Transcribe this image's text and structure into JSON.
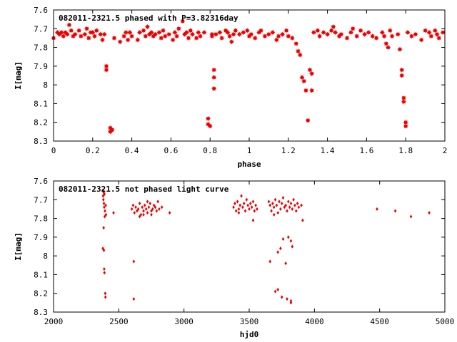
{
  "chart_data": [
    {
      "type": "scatter",
      "title": "082011-2321.5 phased with P=3.82316day",
      "xlabel": "phase",
      "ylabel": "I[mag]",
      "xlim": [
        0,
        2
      ],
      "ylim": [
        8.3,
        7.6
      ],
      "y_inverted": true,
      "x_ticks": [
        "0",
        "0.2",
        "0.4",
        "0.6",
        "0.8",
        "1",
        "1.2",
        "1.4",
        "1.6",
        "1.8",
        "2"
      ],
      "y_ticks": [
        "7.6",
        "7.7",
        "7.8",
        "7.9",
        "8",
        "8.1",
        "8.2",
        "8.3"
      ],
      "grid": false,
      "marker": "filled-star",
      "series": [
        {
          "color": "#ee0000",
          "points": [
            [
              0.0,
              7.75
            ],
            [
              0.02,
              7.72
            ],
            [
              0.03,
              7.73
            ],
            [
              0.04,
              7.72
            ],
            [
              0.05,
              7.74
            ],
            [
              0.06,
              7.72
            ],
            [
              0.07,
              7.73
            ],
            [
              0.08,
              7.68
            ],
            [
              0.09,
              7.71
            ],
            [
              0.1,
              7.74
            ],
            [
              0.11,
              7.73
            ],
            [
              0.13,
              7.71
            ],
            [
              0.14,
              7.74
            ],
            [
              0.16,
              7.73
            ],
            [
              0.17,
              7.7
            ],
            [
              0.18,
              7.75
            ],
            [
              0.19,
              7.72
            ],
            [
              0.2,
              7.72
            ],
            [
              0.21,
              7.74
            ],
            [
              0.22,
              7.71
            ],
            [
              0.24,
              7.73
            ],
            [
              0.25,
              7.76
            ],
            [
              0.26,
              7.73
            ],
            [
              0.27,
              7.9
            ],
            [
              0.27,
              7.92
            ],
            [
              0.29,
              8.23
            ],
            [
              0.29,
              8.25
            ],
            [
              0.3,
              8.24
            ],
            [
              0.31,
              7.75
            ],
            [
              0.34,
              7.77
            ],
            [
              0.36,
              7.74
            ],
            [
              0.37,
              7.72
            ],
            [
              0.38,
              7.76
            ],
            [
              0.39,
              7.72
            ],
            [
              0.4,
              7.74
            ],
            [
              0.43,
              7.76
            ],
            [
              0.44,
              7.72
            ],
            [
              0.46,
              7.71
            ],
            [
              0.47,
              7.74
            ],
            [
              0.48,
              7.69
            ],
            [
              0.49,
              7.73
            ],
            [
              0.5,
              7.72
            ],
            [
              0.51,
              7.74
            ],
            [
              0.52,
              7.73
            ],
            [
              0.54,
              7.72
            ],
            [
              0.55,
              7.75
            ],
            [
              0.56,
              7.71
            ],
            [
              0.57,
              7.74
            ],
            [
              0.59,
              7.73
            ],
            [
              0.61,
              7.76
            ],
            [
              0.62,
              7.72
            ],
            [
              0.63,
              7.74
            ],
            [
              0.64,
              7.7
            ],
            [
              0.66,
              7.66
            ],
            [
              0.67,
              7.73
            ],
            [
              0.68,
              7.72
            ],
            [
              0.69,
              7.75
            ],
            [
              0.7,
              7.71
            ],
            [
              0.71,
              7.73
            ],
            [
              0.73,
              7.75
            ],
            [
              0.74,
              7.72
            ],
            [
              0.75,
              7.74
            ],
            [
              0.77,
              7.72
            ],
            [
              0.79,
              8.18
            ],
            [
              0.79,
              8.21
            ],
            [
              0.8,
              8.22
            ],
            [
              0.81,
              7.73
            ],
            [
              0.81,
              7.74
            ],
            [
              0.82,
              7.96
            ],
            [
              0.82,
              7.92
            ],
            [
              0.82,
              8.02
            ],
            [
              0.83,
              7.73
            ],
            [
              0.85,
              7.72
            ],
            [
              0.86,
              7.75
            ],
            [
              0.88,
              7.71
            ],
            [
              0.89,
              7.72
            ],
            [
              0.9,
              7.74
            ],
            [
              0.91,
              7.77
            ],
            [
              0.92,
              7.73
            ],
            [
              0.93,
              7.71
            ],
            [
              0.95,
              7.73
            ],
            [
              0.97,
              7.72
            ],
            [
              0.99,
              7.71
            ],
            [
              1.0,
              7.74
            ],
            [
              1.01,
              7.73
            ],
            [
              1.03,
              7.75
            ],
            [
              1.05,
              7.72
            ],
            [
              1.06,
              7.71
            ],
            [
              1.08,
              7.74
            ],
            [
              1.1,
              7.73
            ],
            [
              1.12,
              7.72
            ],
            [
              1.14,
              7.76
            ],
            [
              1.15,
              7.74
            ],
            [
              1.17,
              7.73
            ],
            [
              1.19,
              7.71
            ],
            [
              1.2,
              7.74
            ],
            [
              1.22,
              7.75
            ],
            [
              1.24,
              7.78
            ],
            [
              1.25,
              7.82
            ],
            [
              1.26,
              7.84
            ],
            [
              1.27,
              7.96
            ],
            [
              1.28,
              7.98
            ],
            [
              1.29,
              8.03
            ],
            [
              1.3,
              8.19
            ],
            [
              1.31,
              7.92
            ],
            [
              1.32,
              8.03
            ],
            [
              1.32,
              7.94
            ],
            [
              1.33,
              7.72
            ],
            [
              1.35,
              7.71
            ],
            [
              1.36,
              7.74
            ],
            [
              1.38,
              7.72
            ],
            [
              1.4,
              7.73
            ],
            [
              1.42,
              7.71
            ],
            [
              1.43,
              7.69
            ],
            [
              1.44,
              7.72
            ],
            [
              1.46,
              7.74
            ],
            [
              1.47,
              7.73
            ],
            [
              1.5,
              7.75
            ],
            [
              1.52,
              7.72
            ],
            [
              1.53,
              7.7
            ],
            [
              1.55,
              7.74
            ],
            [
              1.57,
              7.71
            ],
            [
              1.59,
              7.73
            ],
            [
              1.61,
              7.72
            ],
            [
              1.63,
              7.74
            ],
            [
              1.65,
              7.75
            ],
            [
              1.68,
              7.72
            ],
            [
              1.69,
              7.74
            ],
            [
              1.7,
              7.78
            ],
            [
              1.71,
              7.8
            ],
            [
              1.72,
              7.71
            ],
            [
              1.73,
              7.74
            ],
            [
              1.76,
              7.73
            ],
            [
              1.77,
              7.81
            ],
            [
              1.78,
              7.92
            ],
            [
              1.78,
              7.95
            ],
            [
              1.79,
              8.07
            ],
            [
              1.79,
              8.09
            ],
            [
              1.8,
              8.2
            ],
            [
              1.8,
              8.22
            ],
            [
              1.81,
              7.72
            ],
            [
              1.83,
              7.74
            ],
            [
              1.85,
              7.73
            ],
            [
              1.88,
              7.76
            ],
            [
              1.9,
              7.71
            ],
            [
              1.92,
              7.72
            ],
            [
              1.93,
              7.74
            ],
            [
              1.95,
              7.71
            ],
            [
              1.96,
              7.73
            ],
            [
              1.97,
              7.75
            ],
            [
              1.99,
              7.72
            ]
          ]
        }
      ]
    },
    {
      "type": "scatter",
      "title": "082011-2321.5 not phased light curve",
      "xlabel": "hjd0",
      "ylabel": "I[mag]",
      "xlim": [
        2000,
        5000
      ],
      "ylim": [
        8.3,
        7.6
      ],
      "y_inverted": true,
      "x_ticks": [
        "2000",
        "2500",
        "3000",
        "3500",
        "4000",
        "4500",
        "5000"
      ],
      "y_ticks": [
        "7.6",
        "7.7",
        "7.8",
        "7.9",
        "8",
        "8.1",
        "8.2",
        "8.3"
      ],
      "grid": false,
      "marker": "small-diamond",
      "series": [
        {
          "color": "#ee0000",
          "points": [
            [
              2378,
              7.65
            ],
            [
              2380,
              7.68
            ],
            [
              2382,
              7.7
            ],
            [
              2384,
              7.66
            ],
            [
              2386,
              7.72
            ],
            [
              2388,
              7.74
            ],
            [
              2390,
              7.67
            ],
            [
              2392,
              7.79
            ],
            [
              2384,
              7.85
            ],
            [
              2378,
              7.96
            ],
            [
              2386,
              7.97
            ],
            [
              2388,
              8.07
            ],
            [
              2390,
              8.09
            ],
            [
              2396,
              8.2
            ],
            [
              2398,
              8.22
            ],
            [
              2394,
              7.76
            ],
            [
              2400,
              7.73
            ],
            [
              2402,
              7.78
            ],
            [
              2460,
              7.77
            ],
            [
              2615,
              8.03
            ],
            [
              2615,
              8.23
            ],
            [
              2600,
              7.75
            ],
            [
              2610,
              7.73
            ],
            [
              2620,
              7.77
            ],
            [
              2630,
              7.74
            ],
            [
              2640,
              7.76
            ],
            [
              2650,
              7.75
            ],
            [
              2660,
              7.72
            ],
            [
              2670,
              7.78
            ],
            [
              2680,
              7.74
            ],
            [
              2690,
              7.76
            ],
            [
              2700,
              7.73
            ],
            [
              2710,
              7.75
            ],
            [
              2720,
              7.77
            ],
            [
              2730,
              7.74
            ],
            [
              2740,
              7.72
            ],
            [
              2750,
              7.76
            ],
            [
              2760,
              7.75
            ],
            [
              2770,
              7.73
            ],
            [
              2780,
              7.74
            ],
            [
              2790,
              7.76
            ],
            [
              2800,
              7.71
            ],
            [
              2810,
              7.75
            ],
            [
              2830,
              7.74
            ],
            [
              2890,
              7.77
            ],
            [
              2660,
              7.79
            ],
            [
              2690,
              7.78
            ],
            [
              2720,
              7.71
            ],
            [
              2750,
              7.78
            ],
            [
              3380,
              7.74
            ],
            [
              3390,
              7.72
            ],
            [
              3400,
              7.76
            ],
            [
              3410,
              7.71
            ],
            [
              3420,
              7.75
            ],
            [
              3430,
              7.73
            ],
            [
              3440,
              7.68
            ],
            [
              3450,
              7.74
            ],
            [
              3460,
              7.72
            ],
            [
              3470,
              7.76
            ],
            [
              3480,
              7.7
            ],
            [
              3490,
              7.73
            ],
            [
              3500,
              7.75
            ],
            [
              3510,
              7.72
            ],
            [
              3520,
              7.74
            ],
            [
              3530,
              7.71
            ],
            [
              3540,
              7.76
            ],
            [
              3550,
              7.73
            ],
            [
              3560,
              7.75
            ],
            [
              3530,
              7.81
            ],
            [
              3420,
              7.77
            ],
            [
              3650,
              7.71
            ],
            [
              3660,
              7.73
            ],
            [
              3670,
              7.76
            ],
            [
              3680,
              7.72
            ],
            [
              3690,
              7.74
            ],
            [
              3700,
              7.7
            ],
            [
              3710,
              7.73
            ],
            [
              3720,
              7.77
            ],
            [
              3730,
              7.71
            ],
            [
              3740,
              7.75
            ],
            [
              3750,
              7.72
            ],
            [
              3760,
              7.69
            ],
            [
              3770,
              7.74
            ],
            [
              3780,
              7.73
            ],
            [
              3790,
              7.76
            ],
            [
              3800,
              7.71
            ],
            [
              3810,
              7.74
            ],
            [
              3820,
              7.72
            ],
            [
              3830,
              7.75
            ],
            [
              3840,
              7.7
            ],
            [
              3850,
              7.73
            ],
            [
              3860,
              7.76
            ],
            [
              3870,
              7.72
            ],
            [
              3880,
              7.74
            ],
            [
              3900,
              7.73
            ],
            [
              3910,
              7.81
            ],
            [
              3690,
              7.78
            ],
            [
              3660,
              8.03
            ],
            [
              3720,
              7.98
            ],
            [
              3740,
              7.96
            ],
            [
              3760,
              7.91
            ],
            [
              3780,
              8.04
            ],
            [
              3800,
              7.9
            ],
            [
              3820,
              7.92
            ],
            [
              3830,
              7.95
            ],
            [
              3700,
              8.19
            ],
            [
              3720,
              8.18
            ],
            [
              3750,
              8.22
            ],
            [
              3790,
              8.23
            ],
            [
              3820,
              8.24
            ],
            [
              3820,
              8.25
            ],
            [
              4480,
              7.75
            ],
            [
              4620,
              7.76
            ],
            [
              4740,
              7.79
            ],
            [
              4880,
              7.77
            ]
          ]
        }
      ]
    }
  ]
}
